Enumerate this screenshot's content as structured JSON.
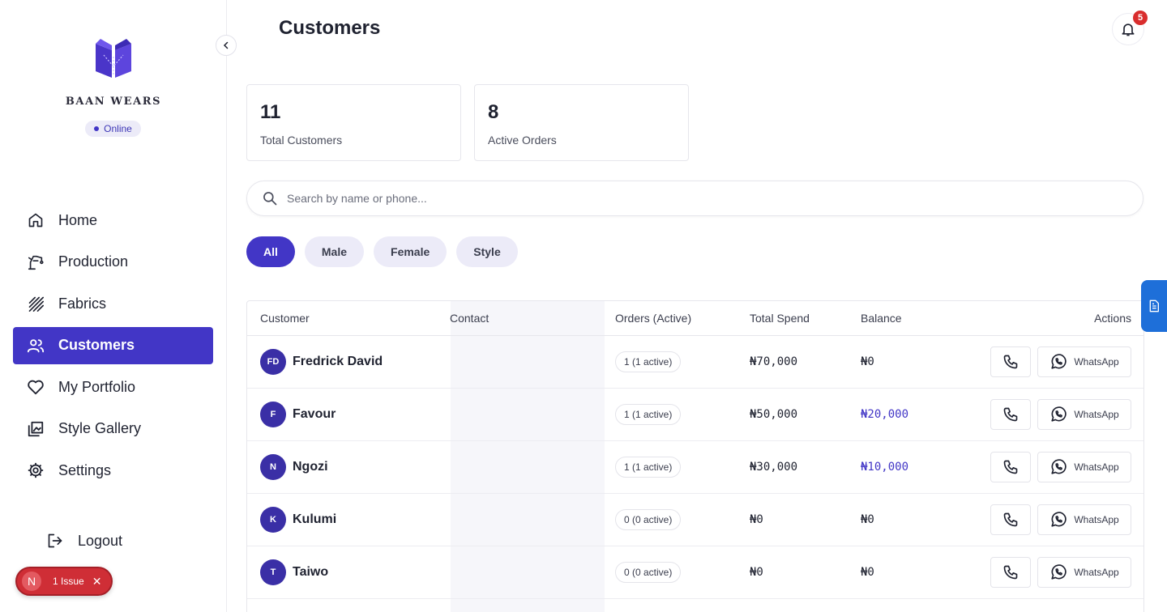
{
  "brand": {
    "name": "BAAN WEARS",
    "status": "Online"
  },
  "nav": {
    "items": [
      {
        "label": "Home",
        "icon": "home-icon"
      },
      {
        "label": "Production",
        "icon": "sewing-machine-icon"
      },
      {
        "label": "Fabrics",
        "icon": "fabric-stripes-icon"
      },
      {
        "label": "Customers",
        "icon": "users-icon",
        "active": true
      },
      {
        "label": "My Portfolio",
        "icon": "heart-icon"
      },
      {
        "label": "Style Gallery",
        "icon": "gallery-icon"
      },
      {
        "label": "Settings",
        "icon": "gear-icon"
      }
    ],
    "logout": "Logout"
  },
  "issue": {
    "avatar": "N",
    "label": "1 Issue"
  },
  "header": {
    "title": "Customers",
    "notifications": "5"
  },
  "stats": [
    {
      "value": "11",
      "label": "Total Customers"
    },
    {
      "value": "8",
      "label": "Active Orders"
    }
  ],
  "search": {
    "placeholder": "Search by name or phone..."
  },
  "filters": [
    {
      "label": "All",
      "active": true
    },
    {
      "label": "Male"
    },
    {
      "label": "Female"
    },
    {
      "label": "Style"
    }
  ],
  "table": {
    "columns": [
      "Customer",
      "Contact",
      "Orders (Active)",
      "Total Spend",
      "Balance",
      "Actions"
    ],
    "whatsapp_label": "WhatsApp",
    "rows": [
      {
        "initials": "FD",
        "name": "Fredrick David",
        "orders": "1 (1 active)",
        "spend": "₦70,000",
        "balance": "₦0",
        "balance_due": false
      },
      {
        "initials": "F",
        "name": "Favour",
        "orders": "1 (1 active)",
        "spend": "₦50,000",
        "balance": "₦20,000",
        "balance_due": true
      },
      {
        "initials": "N",
        "name": "Ngozi",
        "orders": "1 (1 active)",
        "spend": "₦30,000",
        "balance": "₦10,000",
        "balance_due": true
      },
      {
        "initials": "K",
        "name": "Kulumi",
        "orders": "0 (0 active)",
        "spend": "₦0",
        "balance": "₦0",
        "balance_due": false
      },
      {
        "initials": "T",
        "name": "Taiwo",
        "orders": "0 (0 active)",
        "spend": "₦0",
        "balance": "₦0",
        "balance_due": false
      }
    ]
  },
  "colors": {
    "accent": "#4236c6",
    "danger": "#d92d2d",
    "side_tab": "#1e6fd9"
  }
}
